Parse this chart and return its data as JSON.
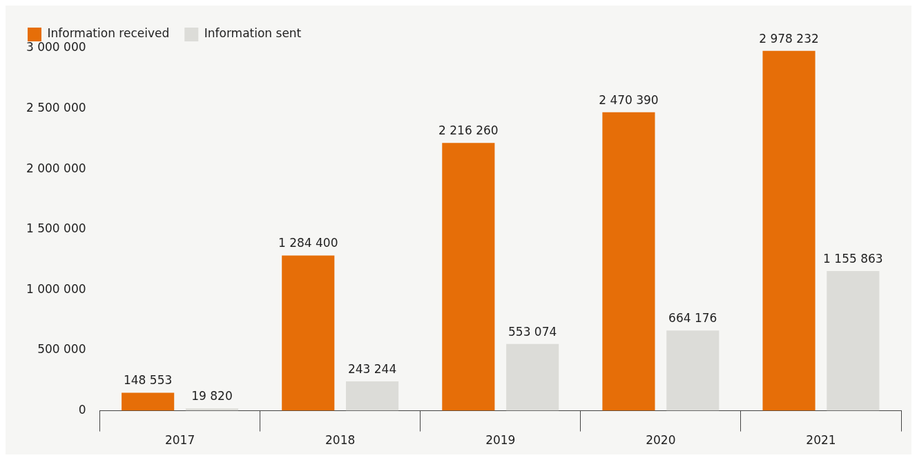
{
  "chart_data": {
    "type": "bar",
    "categories": [
      "2017",
      "2018",
      "2019",
      "2020",
      "2021"
    ],
    "series": [
      {
        "name": "Information received",
        "color": "#e66e08",
        "values": [
          148553,
          1284400,
          2216260,
          2470390,
          2978232
        ]
      },
      {
        "name": "Information sent",
        "color": "#dcdcd8",
        "values": [
          19820,
          243244,
          553074,
          664176,
          1155863
        ]
      }
    ],
    "ylim": [
      0,
      3000000
    ],
    "yticks": [
      {
        "value": 0,
        "label": "0"
      },
      {
        "value": 500000,
        "label": "500 000"
      },
      {
        "value": 1000000,
        "label": "1 000 000"
      },
      {
        "value": 1500000,
        "label": "1 500 000"
      },
      {
        "value": 2000000,
        "label": "2 000 000"
      },
      {
        "value": 2500000,
        "label": "2 500 000"
      },
      {
        "value": 3000000,
        "label": "3 000 000"
      }
    ],
    "grid": false,
    "legend": "top left",
    "data_labels": true
  }
}
